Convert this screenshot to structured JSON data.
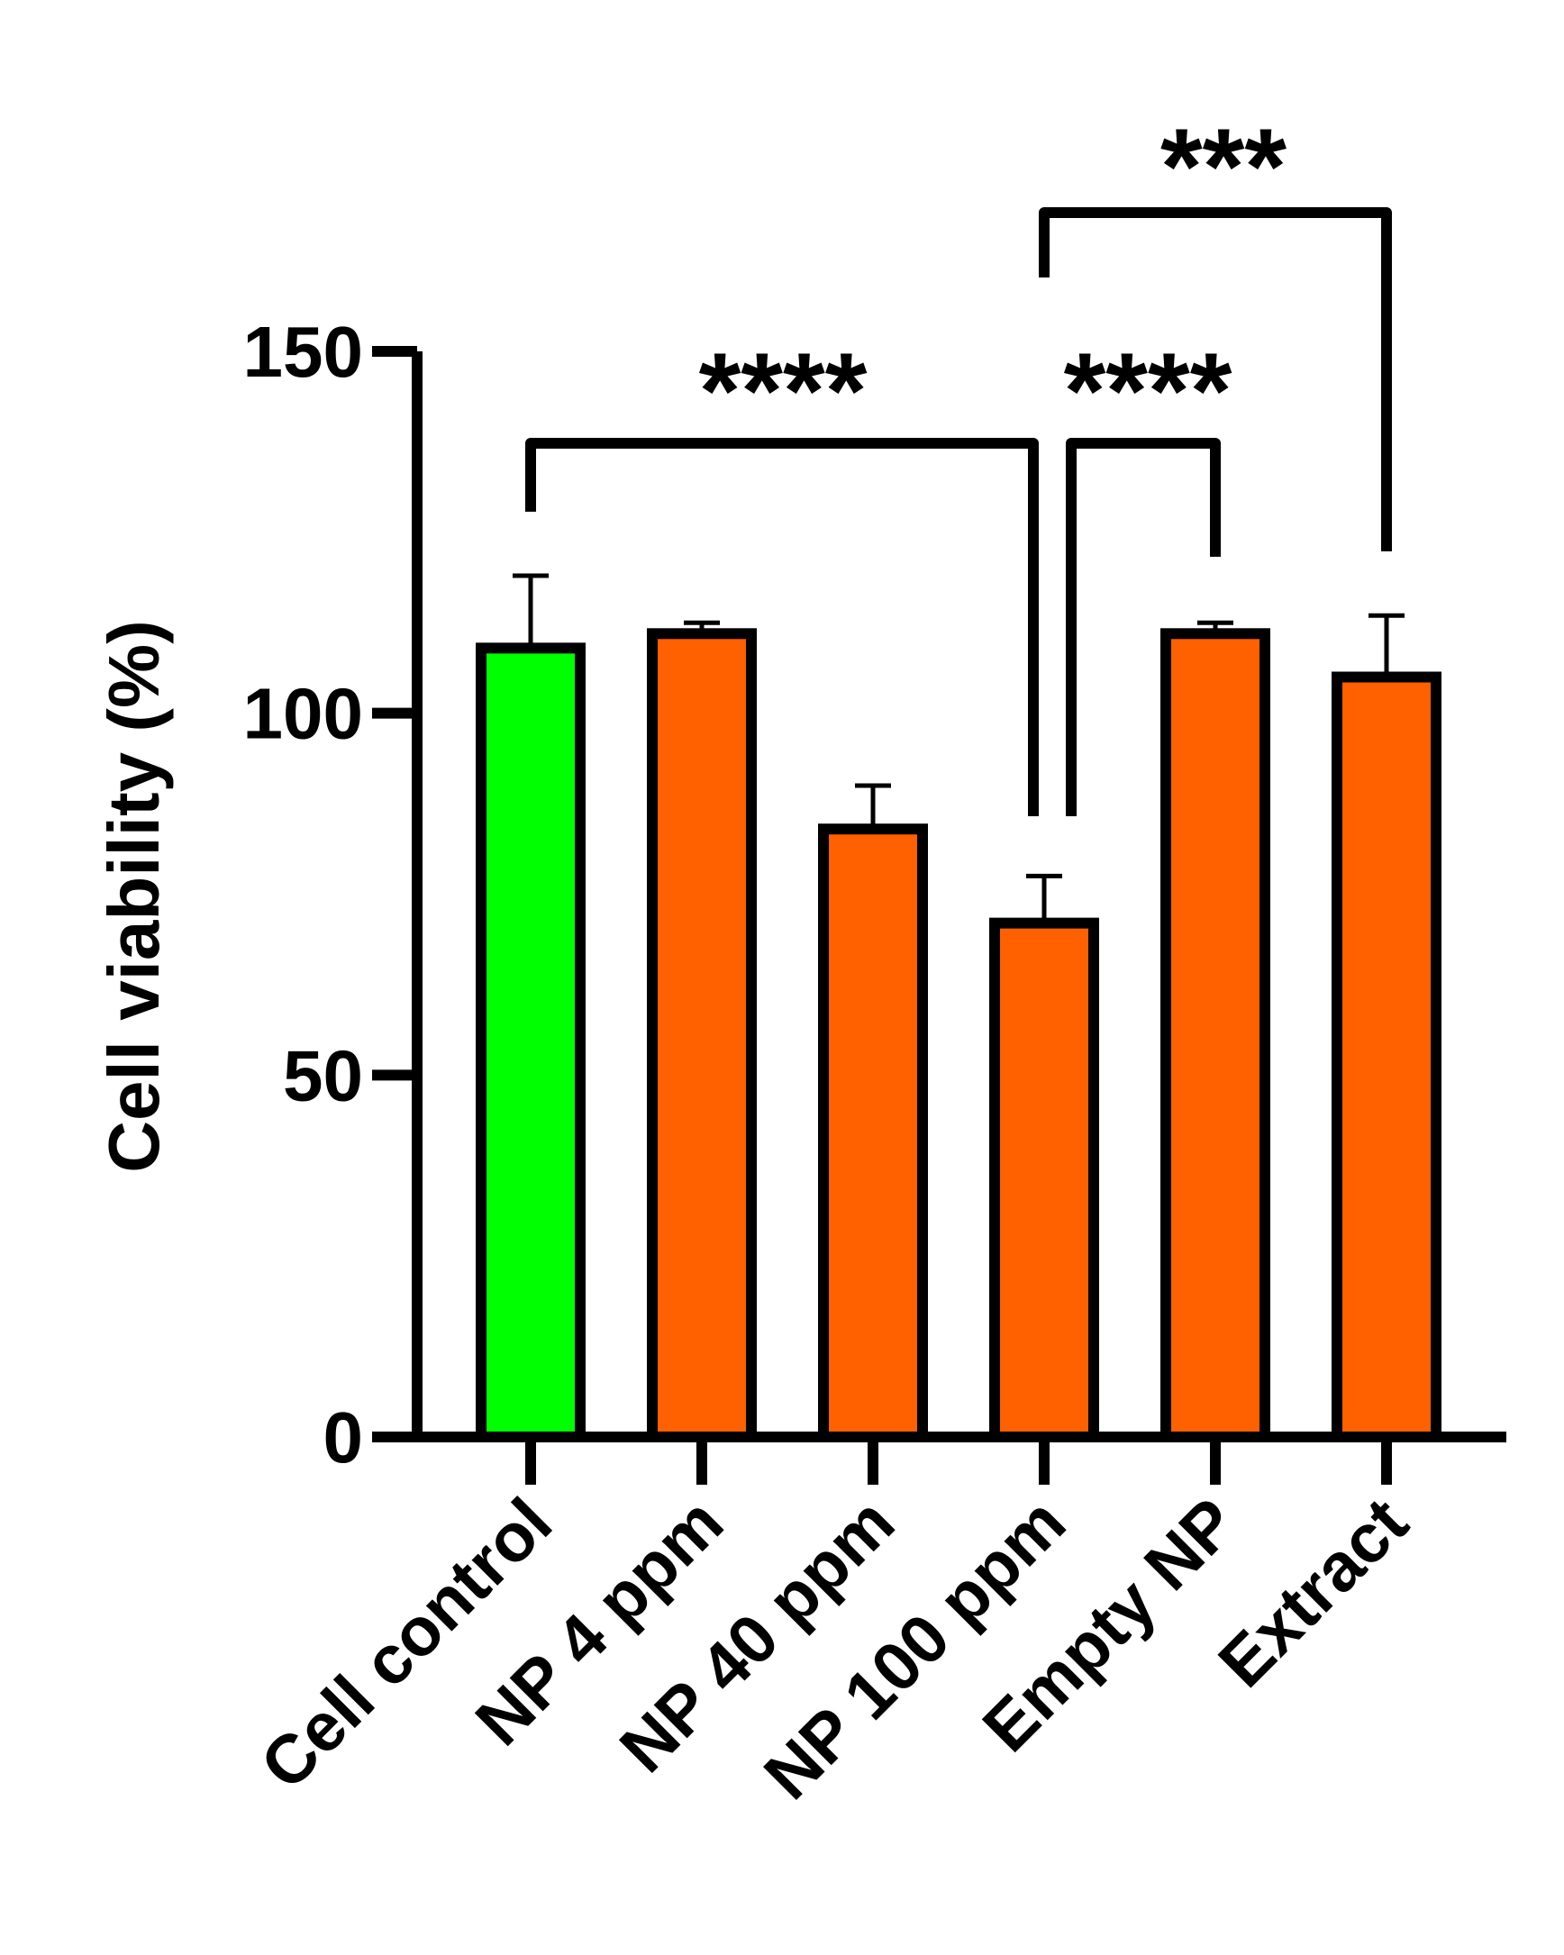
{
  "chart_data": {
    "type": "bar",
    "title": "",
    "xlabel": "",
    "ylabel": "Cell viability (%)",
    "ylim": [
      0,
      150
    ],
    "yticks": [
      0,
      50,
      100,
      150
    ],
    "ytick_labels": [
      "0",
      "50",
      "100",
      "150"
    ],
    "grid": false,
    "legend": "none",
    "categories": [
      "Cell control",
      "NP 4 ppm",
      "NP 40 ppm",
      "NP 100 ppm",
      "Empty NP",
      "Extract"
    ],
    "values": [
      109,
      111,
      84,
      71,
      111,
      105
    ],
    "errors": [
      10,
      1.5,
      6,
      6.5,
      1.5,
      8.5
    ],
    "bar_colors": [
      "#00ff00",
      "#ff6000",
      "#ff6000",
      "#ff6000",
      "#ff6000",
      "#ff6000"
    ],
    "bar_outline_color": "#000000",
    "significance": [
      {
        "from": "Cell control",
        "to": "NP 100 ppm",
        "label": "****"
      },
      {
        "from": "NP 100 ppm",
        "to": "Empty NP",
        "label": "****"
      },
      {
        "from": "NP 100 ppm",
        "to": "Extract",
        "label": "***"
      }
    ]
  }
}
